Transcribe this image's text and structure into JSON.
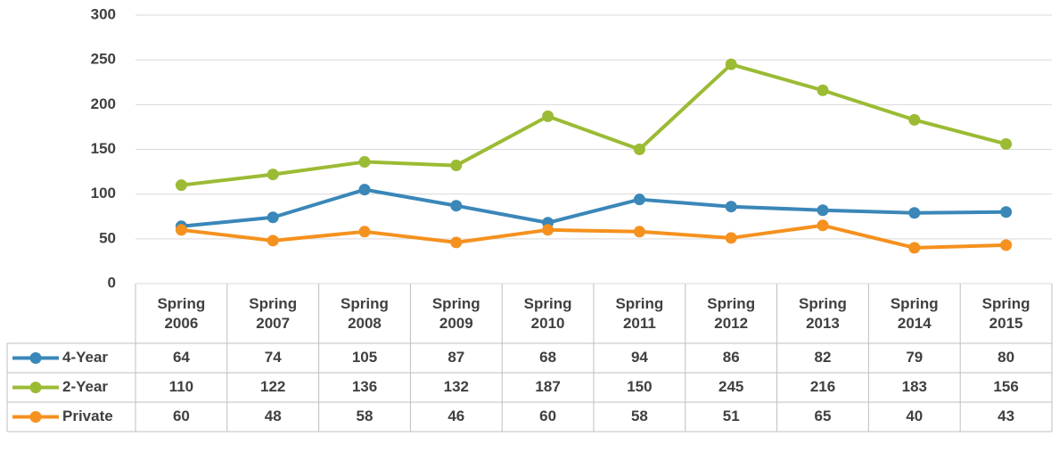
{
  "chart_data": {
    "type": "line",
    "categories": [
      "Spring 2006",
      "Spring 2007",
      "Spring 2008",
      "Spring 2009",
      "Spring 2010",
      "Spring 2011",
      "Spring 2012",
      "Spring 2013",
      "Spring 2014",
      "Spring 2015"
    ],
    "series": [
      {
        "name": "4-Year",
        "color": "#3a87b8",
        "values": [
          64,
          74,
          105,
          87,
          68,
          94,
          86,
          82,
          79,
          80
        ]
      },
      {
        "name": "2-Year",
        "color": "#9bbb34",
        "values": [
          110,
          122,
          136,
          132,
          187,
          150,
          245,
          216,
          183,
          156
        ]
      },
      {
        "name": "Private",
        "color": "#f5911e",
        "values": [
          60,
          48,
          58,
          46,
          60,
          58,
          51,
          65,
          40,
          43
        ]
      }
    ],
    "ylim": [
      0,
      300
    ],
    "yticks": [
      0,
      50,
      100,
      150,
      200,
      250,
      300
    ],
    "grid": true
  }
}
